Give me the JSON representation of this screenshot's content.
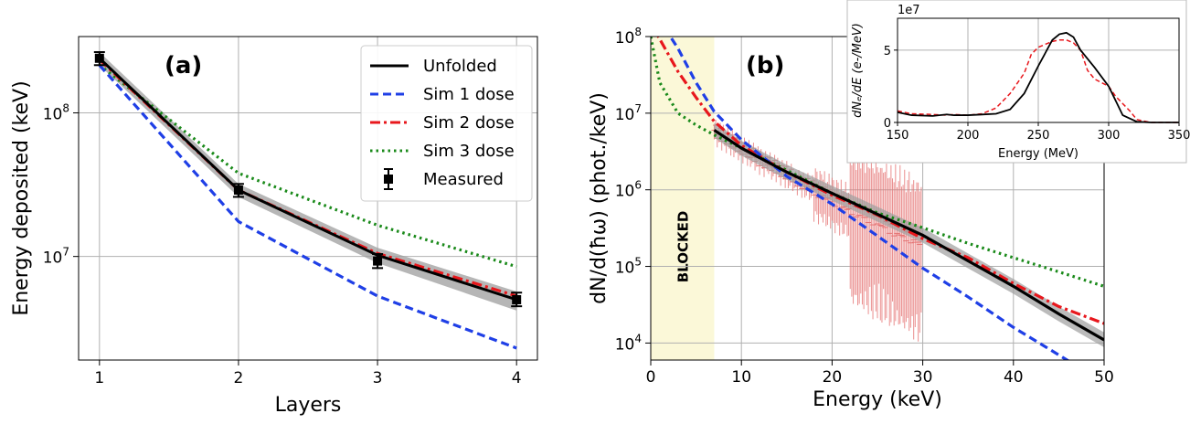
{
  "chart_data": [
    {
      "panel": "(a)",
      "type": "line",
      "xlabel": "Layers",
      "ylabel": "Energy deposited (keV)",
      "yscale": "log",
      "xlim": [
        0.85,
        4.15
      ],
      "ylim": [
        1900000,
        340000000
      ],
      "xticks": [
        1,
        2,
        3,
        4
      ],
      "xtick_labels": [
        "1",
        "2",
        "3",
        "4"
      ],
      "yticks": [
        10000000,
        100000000
      ],
      "ytick_labels": [
        [
          "10",
          "7"
        ],
        [
          "10",
          "8"
        ]
      ],
      "grid": true,
      "legend_position": "top-right",
      "series": [
        {
          "name": "Unfolded",
          "color": "#000000",
          "dash": "solid",
          "x": [
            1,
            2,
            3,
            4
          ],
          "y": [
            240000000,
            29000000,
            10200000,
            5000000
          ],
          "band_low": [
            215000000,
            26000000,
            9000000,
            4200000
          ],
          "band_high": [
            265000000,
            32000000,
            11500000,
            5700000
          ]
        },
        {
          "name": "Sim 1 dose",
          "color": "#1f3fe6",
          "dash": "dashed",
          "x": [
            1,
            2,
            3,
            4
          ],
          "y": [
            215000000,
            17500000,
            5300000,
            2300000
          ]
        },
        {
          "name": "Sim 2 dose",
          "color": "#e8171c",
          "dash": "dashdot",
          "x": [
            1,
            2,
            3,
            4
          ],
          "y": [
            235000000,
            29000000,
            10500000,
            5300000
          ]
        },
        {
          "name": "Sim 3 dose",
          "color": "#1a8a1a",
          "dash": "dotted",
          "x": [
            1,
            2,
            3,
            4
          ],
          "y": [
            215000000,
            38000000,
            16500000,
            8500000
          ]
        },
        {
          "name": "Measured",
          "color": "#000000",
          "marker": "square",
          "x": [
            1,
            2,
            3,
            4
          ],
          "y": [
            240000000,
            29000000,
            9300000,
            5000000
          ],
          "yerr_low": [
            215000000,
            26000000,
            8300000,
            4500000
          ],
          "yerr_high": [
            265000000,
            32000000,
            10400000,
            5600000
          ]
        }
      ]
    },
    {
      "panel": "(b)",
      "type": "line",
      "xlabel": "Energy (keV)",
      "ylabel": "dN/d(ħω) (phot./keV)",
      "yscale": "log",
      "xlim": [
        0,
        50
      ],
      "ylim": [
        6000,
        100000000
      ],
      "xticks": [
        0,
        10,
        20,
        30,
        40,
        50
      ],
      "xtick_labels": [
        "0",
        "10",
        "20",
        "30",
        "40",
        "50"
      ],
      "yticks": [
        10000,
        100000,
        1000000,
        10000000,
        100000000
      ],
      "ytick_labels": [
        [
          "10",
          "4"
        ],
        [
          "10",
          "5"
        ],
        [
          "10",
          "6"
        ],
        [
          "10",
          "7"
        ],
        [
          "10",
          "8"
        ]
      ],
      "grid": true,
      "blocked_region": {
        "x": [
          0,
          7
        ],
        "label": "BLOCKED",
        "color": "#fbf8d8"
      },
      "series": [
        {
          "name": "Unfolded",
          "color": "#000000",
          "dash": "solid",
          "x": [
            7,
            10,
            15,
            20,
            25,
            30,
            35,
            40,
            45,
            50
          ],
          "y": [
            6000000,
            3500000,
            1700000,
            900000,
            480000,
            255000,
            118000,
            55000,
            24000,
            11000
          ]
        },
        {
          "name": "Sim 1 dose",
          "color": "#1f3fe6",
          "dash": "dashed",
          "x": [
            0,
            3,
            5,
            7,
            10,
            15,
            20,
            25,
            30,
            35,
            40,
            45,
            47
          ],
          "y": [
            250000000,
            70000000,
            25000000,
            10500000,
            4500000,
            1500000,
            650000,
            250000,
            95000,
            40000,
            16000,
            7000,
            5000
          ]
        },
        {
          "name": "Sim 2 dose",
          "color": "#e8171c",
          "dash": "dashdot",
          "x": [
            0,
            3,
            5,
            7,
            10,
            15,
            20,
            25,
            30,
            35,
            40,
            45,
            50
          ],
          "y": [
            150000000,
            35000000,
            16000000,
            7800000,
            3800000,
            1700000,
            850000,
            470000,
            230000,
            130000,
            60000,
            30000,
            18000
          ]
        },
        {
          "name": "Sim 3 dose",
          "color": "#1a8a1a",
          "dash": "dotted",
          "x": [
            0,
            1,
            3,
            5,
            7,
            10,
            15,
            20,
            25,
            30,
            35,
            40,
            45,
            50
          ],
          "y": [
            100000000,
            25000000,
            10000000,
            7000000,
            5200000,
            3500000,
            1800000,
            900000,
            500000,
            320000,
            200000,
            130000,
            85000,
            55000
          ]
        },
        {
          "name": "Measured",
          "color": "#e57373",
          "marker": "errorbar",
          "x": [
            7,
            8,
            9,
            10,
            11,
            12,
            13,
            14,
            15,
            16,
            17,
            18,
            19,
            20,
            21,
            22,
            23,
            24,
            25,
            26,
            27,
            28,
            29,
            30
          ],
          "y": [
            6000000,
            5000000,
            4300000,
            3600000,
            3100000,
            2500000,
            2200000,
            1900000,
            1650000,
            1400000,
            1200000,
            1050000,
            900000,
            780000,
            680000,
            600000,
            520000,
            460000,
            400000,
            350000,
            300000,
            270000,
            240000,
            210000
          ]
        }
      ]
    },
    {
      "panel": "inset",
      "type": "line",
      "xlabel": "Energy (MeV)",
      "ylabel": "dNₑ/dE (e-/MeV)",
      "exponent_label": "1e7",
      "xlim": [
        150,
        350
      ],
      "ylim": [
        0,
        7.2
      ],
      "xticks": [
        150,
        200,
        250,
        300,
        350
      ],
      "xtick_labels": [
        "150",
        "200",
        "250",
        "300",
        "350"
      ],
      "yticks": [
        0,
        5
      ],
      "ytick_labels": [
        "0",
        "5"
      ],
      "grid": true,
      "series": [
        {
          "name": "Unfolded",
          "color": "#000000",
          "dash": "solid",
          "x": [
            150,
            160,
            175,
            185,
            190,
            200,
            210,
            220,
            230,
            240,
            250,
            255,
            260,
            265,
            270,
            275,
            280,
            290,
            300,
            305,
            310,
            320,
            330,
            350
          ],
          "y": [
            0.7,
            0.5,
            0.45,
            0.55,
            0.5,
            0.5,
            0.55,
            0.6,
            0.9,
            2.0,
            3.9,
            4.8,
            5.7,
            6.1,
            6.2,
            5.9,
            5.0,
            3.8,
            2.5,
            1.5,
            0.5,
            0.05,
            0.0,
            0.0
          ]
        },
        {
          "name": "Sim 2 dose",
          "color": "#e8171c",
          "dash": "dashed",
          "x": [
            150,
            160,
            175,
            185,
            190,
            200,
            210,
            220,
            230,
            240,
            245,
            250,
            255,
            260,
            265,
            270,
            275,
            280,
            285,
            290,
            300,
            305,
            315,
            320,
            330,
            350
          ],
          "y": [
            0.8,
            0.6,
            0.55,
            0.5,
            0.55,
            0.5,
            0.6,
            1.0,
            2.0,
            3.4,
            4.7,
            5.2,
            5.4,
            5.6,
            5.7,
            5.7,
            5.5,
            5.0,
            3.6,
            3.0,
            2.5,
            1.8,
            0.8,
            0.2,
            0.0,
            0.0
          ]
        }
      ]
    }
  ]
}
